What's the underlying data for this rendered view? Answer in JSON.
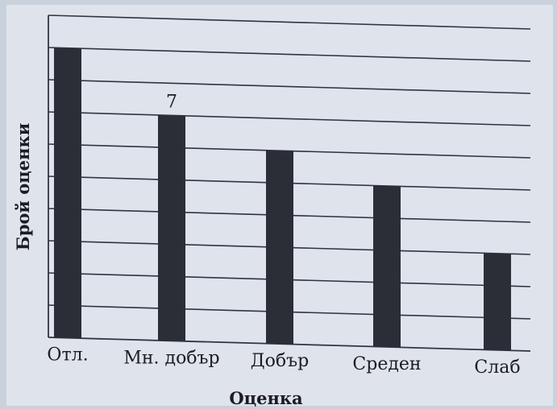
{
  "chart_data": {
    "type": "bar",
    "categories": [
      "Отл.",
      "Мн. добър",
      "Добър",
      "Среден",
      "Слаб"
    ],
    "values": [
      9,
      7,
      6,
      5,
      3
    ],
    "data_labels": [
      {
        "category_index": 1,
        "text": "7"
      }
    ],
    "xlabel": "Оценка",
    "ylabel": "Брой оценки",
    "ylim": [
      0,
      10
    ],
    "grid": true,
    "y_tick_labels_shown": false,
    "colors": {
      "bar": "#2b2e36",
      "grid": "#2f3440",
      "paper": "#dfe4ec"
    }
  }
}
